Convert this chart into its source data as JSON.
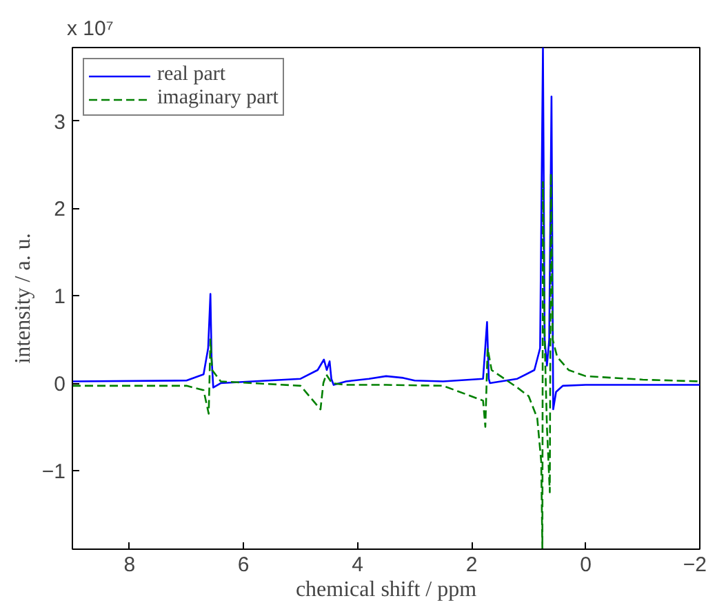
{
  "chart_data": {
    "type": "line",
    "xlabel": "chemical shift / ppm",
    "ylabel": "intensity / a. u.",
    "annotations": [
      "x 10⁷"
    ],
    "xlim": [
      9,
      -2
    ],
    "xticks": [
      8,
      6,
      4,
      2,
      0,
      {
        "value": -2,
        "label": "−2"
      }
    ],
    "ylim": [
      -1.9,
      3.84
    ],
    "yticks": [
      {
        "value": -1,
        "label": "−1"
      },
      0,
      1,
      2,
      3
    ],
    "grid": false,
    "legend": "top left",
    "series": [
      {
        "name": "real part",
        "color": "#0000ff",
        "line_style": "solid",
        "x": [
          9,
          7,
          6.7,
          6.62,
          6.58,
          6.56,
          6.53,
          6.4,
          5,
          4.7,
          4.59,
          4.54,
          4.49,
          4.46,
          4.42,
          4.2,
          3.8,
          3.5,
          3.2,
          3.0,
          2.5,
          1.8,
          1.73,
          1.7,
          1.68,
          1.2,
          0.9,
          0.8,
          0.75,
          0.72,
          0.68,
          0.64,
          0.6,
          0.57,
          0.52,
          0.4,
          0,
          -1,
          -2
        ],
        "values": [
          0.02,
          0.03,
          0.1,
          0.4,
          1.02,
          0.3,
          -0.05,
          0,
          0.05,
          0.15,
          0.27,
          0.15,
          0.25,
          0.05,
          -0.02,
          0.02,
          0.05,
          0.08,
          0.06,
          0.03,
          0.02,
          0.05,
          0.7,
          0.05,
          0,
          0.05,
          0.15,
          0.4,
          3.84,
          0.5,
          0.2,
          0.5,
          3.28,
          -0.3,
          -0.1,
          -0.03,
          -0.02,
          -0.02,
          -0.02
        ]
      },
      {
        "name": "imaginary part",
        "color": "#008000",
        "line_style": "dashed",
        "x": [
          9,
          7,
          6.7,
          6.61,
          6.58,
          6.55,
          6.4,
          5,
          4.65,
          4.6,
          4.55,
          4.45,
          4.2,
          3.5,
          2.5,
          1.8,
          1.76,
          1.72,
          1.65,
          1.2,
          1.0,
          0.85,
          0.78,
          0.76,
          0.75,
          0.72,
          0.68,
          0.63,
          0.61,
          0.58,
          0.5,
          0.3,
          0,
          -1,
          -2
        ],
        "values": [
          -0.03,
          -0.03,
          -0.08,
          -0.35,
          0.5,
          0.15,
          0.02,
          -0.03,
          -0.3,
          0,
          0.1,
          0,
          -0.02,
          -0.02,
          -0.03,
          -0.2,
          -0.5,
          0.4,
          0.15,
          -0.05,
          -0.15,
          -0.4,
          -0.9,
          -1.9,
          2.3,
          0.5,
          -0.5,
          -1.25,
          2.4,
          0.5,
          0.3,
          0.15,
          0.08,
          0.04,
          0.02
        ]
      }
    ]
  }
}
